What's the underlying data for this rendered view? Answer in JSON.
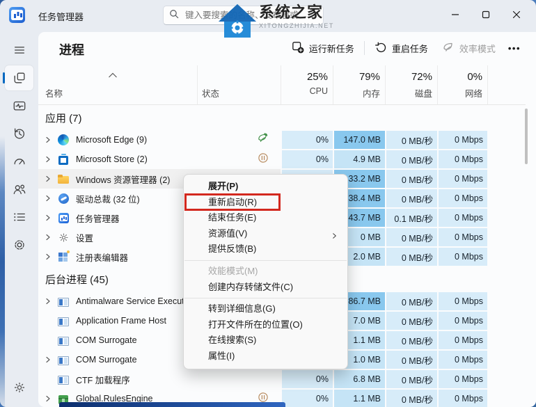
{
  "window": {
    "title": "任务管理器"
  },
  "search": {
    "placeholder": "键入要搜索的名称、发布者或..."
  },
  "watermark": {
    "title": "系统之家",
    "subtitle": "XITONGZHIJIA.NET"
  },
  "nav": {
    "items": [
      {
        "icon": "menu-icon",
        "selected": false
      },
      {
        "icon": "processes-icon",
        "selected": true
      },
      {
        "icon": "performance-icon",
        "selected": false
      },
      {
        "icon": "app-history-icon",
        "selected": false
      },
      {
        "icon": "startup-apps-icon",
        "selected": false
      },
      {
        "icon": "users-icon",
        "selected": false
      },
      {
        "icon": "details-icon",
        "selected": false
      },
      {
        "icon": "services-icon",
        "selected": false
      }
    ],
    "settings_icon": "gear-icon"
  },
  "header": {
    "title": "进程",
    "actions": [
      {
        "label": "运行新任务",
        "icon": "run-new-task-icon",
        "disabled": false
      },
      {
        "label": "重启任务",
        "icon": "restart-icon",
        "disabled": false
      },
      {
        "label": "效率模式",
        "icon": "leaf-icon",
        "disabled": true
      }
    ],
    "more": "•••"
  },
  "columns": {
    "name": "名称",
    "status": "状态",
    "metrics": [
      {
        "pct": "25%",
        "label": "CPU"
      },
      {
        "pct": "79%",
        "label": "内存"
      },
      {
        "pct": "72%",
        "label": "磁盘"
      },
      {
        "pct": "0%",
        "label": "网络"
      }
    ]
  },
  "sections": [
    {
      "header": "应用 (7)",
      "rows": [
        {
          "name": "Microsoft Edge (9)",
          "icon": "edge-icon",
          "chevron": true,
          "status_icon": "leaf-status-icon",
          "cpu": "0%",
          "mem": "147.0 MB",
          "mem_level": "high",
          "disk": "0 MB/秒",
          "net": "0 Mbps",
          "selected": false
        },
        {
          "name": "Microsoft Store (2)",
          "icon": "store-icon",
          "chevron": true,
          "status_icon": "pause-status-icon",
          "cpu": "0%",
          "mem": "4.9 MB",
          "mem_level": "normal",
          "disk": "0 MB/秒",
          "net": "0 Mbps",
          "selected": false
        },
        {
          "name": "Windows 资源管理器 (2)",
          "icon": "folder-icon",
          "chevron": true,
          "status_icon": "",
          "cpu": "",
          "mem": "33.2 MB",
          "mem_level": "high",
          "disk": "0 MB/秒",
          "net": "0 Mbps",
          "selected": true
        },
        {
          "name": "驱动总裁 (32 位)",
          "icon": "driver-icon",
          "chevron": true,
          "status_icon": "",
          "cpu": "",
          "mem": "38.4 MB",
          "mem_level": "high",
          "disk": "0 MB/秒",
          "net": "0 Mbps",
          "selected": false
        },
        {
          "name": "任务管理器",
          "icon": "task-manager-icon",
          "chevron": true,
          "status_icon": "",
          "cpu": "",
          "mem": "43.7 MB",
          "mem_level": "high",
          "disk": "0.1 MB/秒",
          "net": "0 Mbps",
          "selected": false
        },
        {
          "name": "设置",
          "icon": "settings-app-icon",
          "chevron": true,
          "status_icon": "",
          "cpu": "",
          "mem": "0 MB",
          "mem_level": "normal",
          "disk": "0 MB/秒",
          "net": "0 Mbps",
          "selected": false
        },
        {
          "name": "注册表编辑器",
          "icon": "registry-icon",
          "chevron": true,
          "status_icon": "",
          "cpu": "",
          "mem": "2.0 MB",
          "mem_level": "normal",
          "disk": "0 MB/秒",
          "net": "0 Mbps",
          "selected": false
        }
      ]
    },
    {
      "header": "后台进程 (45)",
      "rows": [
        {
          "name": "Antimalware Service Executable",
          "icon": "window-icon",
          "chevron": true,
          "status_icon": "",
          "cpu": "",
          "mem": "86.7 MB",
          "mem_level": "high",
          "disk": "0 MB/秒",
          "net": "0 Mbps",
          "selected": false
        },
        {
          "name": "Application Frame Host",
          "icon": "window-icon",
          "chevron": false,
          "status_icon": "",
          "cpu": "",
          "mem": "7.0 MB",
          "mem_level": "normal",
          "disk": "0 MB/秒",
          "net": "0 Mbps",
          "selected": false
        },
        {
          "name": "COM Surrogate",
          "icon": "window-icon",
          "chevron": false,
          "status_icon": "",
          "cpu": "",
          "mem": "1.1 MB",
          "mem_level": "normal",
          "disk": "0 MB/秒",
          "net": "0 Mbps",
          "selected": false
        },
        {
          "name": "COM Surrogate",
          "icon": "window-icon",
          "chevron": true,
          "status_icon": "",
          "cpu": "",
          "mem": "1.0 MB",
          "mem_level": "normal",
          "disk": "0 MB/秒",
          "net": "0 Mbps",
          "selected": false
        },
        {
          "name": "CTF 加载程序",
          "icon": "window-icon",
          "chevron": false,
          "status_icon": "",
          "cpu": "0%",
          "mem": "6.8 MB",
          "mem_level": "normal",
          "disk": "0 MB/秒",
          "net": "0 Mbps",
          "selected": false
        },
        {
          "name": "Global.RulesEngine",
          "icon": "package-icon",
          "chevron": true,
          "status_icon": "pause-status-icon",
          "cpu": "0%",
          "mem": "1.1 MB",
          "mem_level": "normal",
          "disk": "0 MB/秒",
          "net": "0 Mbps",
          "selected": false
        }
      ]
    }
  ],
  "context_menu": {
    "items": [
      {
        "label": "展开(P)",
        "bold": true
      },
      {
        "label": "重新启动(R)",
        "annotated": true
      },
      {
        "label": "结束任务(E)"
      },
      {
        "label": "资源值(V)",
        "submenu": true
      },
      {
        "label": "提供反馈(B)"
      },
      {
        "separator": true
      },
      {
        "label": "效能模式(M)",
        "disabled": true
      },
      {
        "label": "创建内存转储文件(C)"
      },
      {
        "separator": true
      },
      {
        "label": "转到详细信息(G)"
      },
      {
        "label": "打开文件所在的位置(O)"
      },
      {
        "label": "在线搜索(S)"
      },
      {
        "label": "属性(I)"
      }
    ]
  },
  "colors": {
    "accent": "#0067c0",
    "cell_tint": "#d7ecf9",
    "mem_normal": "#c5e4f6",
    "mem_high": "#89c8ee",
    "annotation": "#d3281e"
  }
}
